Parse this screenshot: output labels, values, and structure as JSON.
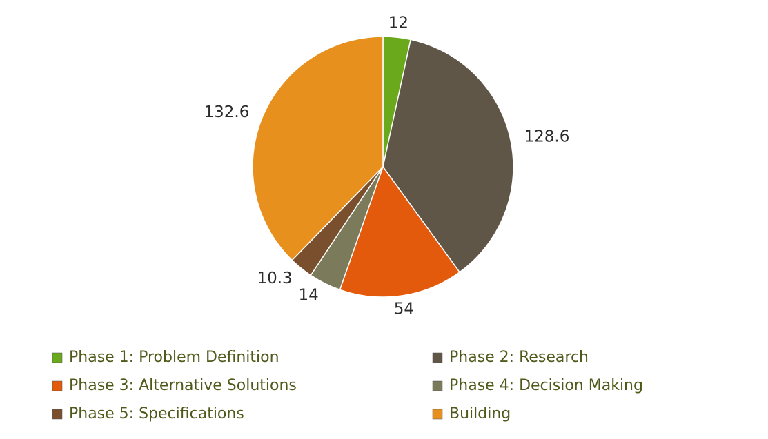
{
  "chart_data": {
    "type": "pie",
    "categories": [
      "Phase 1: Problem Definition",
      "Phase 2: Research",
      "Phase 3: Alternative Solutions",
      "Phase 4: Decision Making",
      "Phase 5: Specifications",
      "Building"
    ],
    "values": [
      12,
      128.6,
      54,
      14,
      10.3,
      132.6
    ],
    "colors": [
      "#6aa81c",
      "#5f5648",
      "#e35a0c",
      "#7b7b5c",
      "#7a4f2e",
      "#e8901e"
    ],
    "legend": "bottom"
  }
}
